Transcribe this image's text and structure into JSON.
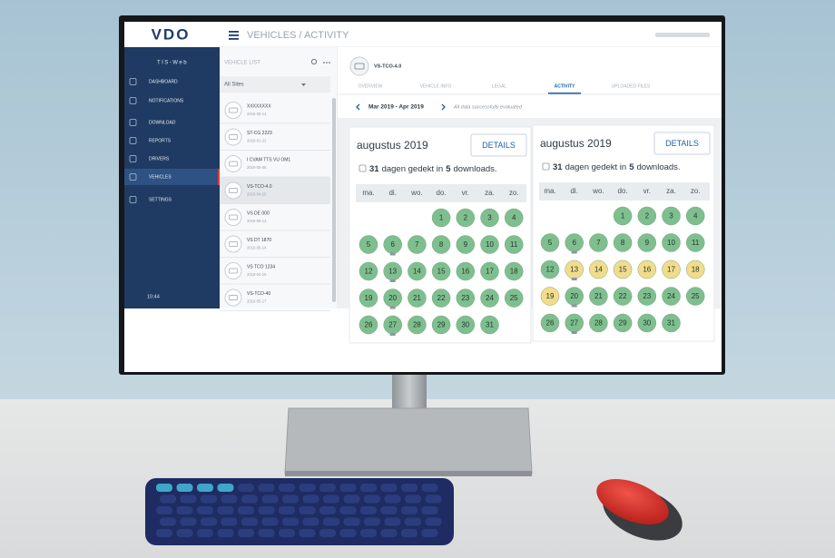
{
  "header": {
    "logo": "VDO",
    "breadcrumb": "VEHICLES / ACTIVITY"
  },
  "sidebar": {
    "title": "TIS-Web",
    "items": [
      "DASHBOARD",
      "NOTIFICATIONS",
      "DOWNLOAD",
      "REPORTS",
      "DRIVERS",
      "VEHICLES",
      "SETTINGS"
    ],
    "clock": "10:44"
  },
  "vehicle_list": {
    "title": "VEHICLE LIST",
    "filter": "All Sites",
    "vehicles": [
      {
        "name": "XXXXXXXX",
        "date": "2019-05-14"
      },
      {
        "name": "ST-CG 2223",
        "date": "2019-01-22"
      },
      {
        "name": "I CVAM TTS VU OM1",
        "date": "2019-05-06"
      },
      {
        "name": "VS-TCO-4.0",
        "date": "2019-04-25"
      },
      {
        "name": "VS DE 000",
        "date": "2019-05-14"
      },
      {
        "name": "VS DT 1870",
        "date": "2019-05-14"
      },
      {
        "name": "VS TCO 1234",
        "date": "2019-04-25"
      },
      {
        "name": "VS-TCO-40",
        "date": "2019-05-17"
      }
    ]
  },
  "vehicle": {
    "name": "VS-TCO-4.0",
    "tabs": [
      "OVERVIEW",
      "VEHICLE INFO",
      "LEGAL",
      "ACTIVITY",
      "UPLOADED FILES"
    ],
    "period": "Mar 2019 - Apr 2019",
    "status": "All data successfully evaluated"
  },
  "calendars": [
    {
      "month": "augustus 2019",
      "button": "DETAILS",
      "days_covered": "31",
      "text_mid": "dagen gedekt in",
      "downloads": "5",
      "text_end": "downloads.",
      "weekdays": [
        "ma.",
        "di.",
        "wo.",
        "do.",
        "vr.",
        "za.",
        "zo."
      ],
      "days": [
        "1",
        "2",
        "3",
        "4",
        "5",
        "6",
        "7",
        "8",
        "9",
        "10",
        "11",
        "12",
        "13",
        "14",
        "15",
        "16",
        "17",
        "18",
        "19",
        "20",
        "21",
        "22",
        "23",
        "24",
        "25",
        "26",
        "27",
        "28",
        "29",
        "30",
        "31"
      ],
      "colors": [
        "#7fbf8f",
        "#7fbf8f",
        "#7fbf8f",
        "#7fbf8f",
        "#7fbf8f",
        "#7fbf8f",
        "#7fbf8f",
        "#7fbf8f",
        "#7fbf8f",
        "#7fbf8f",
        "#7fbf8f",
        "#7fbf8f",
        "#7fbf8f",
        "#7fbf8f",
        "#7fbf8f",
        "#7fbf8f",
        "#7fbf8f",
        "#7fbf8f",
        "#7fbf8f",
        "#7fbf8f",
        "#7fbf8f",
        "#7fbf8f",
        "#7fbf8f",
        "#7fbf8f",
        "#7fbf8f",
        "#7fbf8f",
        "#7fbf8f",
        "#7fbf8f",
        "#7fbf8f",
        "#7fbf8f",
        "#7fbf8f"
      ]
    },
    {
      "month": "augustus 2019",
      "button": "DETAILS",
      "days_covered": "31",
      "text_mid": "dagen gedekt in",
      "downloads": "5",
      "text_end": "downloads.",
      "weekdays": [
        "ma.",
        "di.",
        "wo.",
        "do.",
        "vr.",
        "za.",
        "zo."
      ],
      "days": [
        "1",
        "2",
        "3",
        "4",
        "5",
        "6",
        "7",
        "8",
        "9",
        "10",
        "11",
        "12",
        "13",
        "14",
        "15",
        "16",
        "17",
        "18",
        "19",
        "20",
        "21",
        "22",
        "23",
        "24",
        "25",
        "26",
        "27",
        "28",
        "29",
        "30",
        "31"
      ],
      "colors": [
        "#7fbf8f",
        "#7fbf8f",
        "#7fbf8f",
        "#7fbf8f",
        "#7fbf8f",
        "#7fbf8f",
        "#7fbf8f",
        "#7fbf8f",
        "#7fbf8f",
        "#7fbf8f",
        "#7fbf8f",
        "#7fbf8f",
        "#f2dc8c",
        "#f2dc8c",
        "#f2dc8c",
        "#f2dc8c",
        "#f2dc8c",
        "#f2dc8c",
        "#f2dc8c",
        "#7fbf8f",
        "#7fbf8f",
        "#7fbf8f",
        "#7fbf8f",
        "#7fbf8f",
        "#7fbf8f",
        "#7fbf8f",
        "#7fbf8f",
        "#7fbf8f",
        "#7fbf8f",
        "#7fbf8f",
        "#7fbf8f"
      ]
    }
  ]
}
